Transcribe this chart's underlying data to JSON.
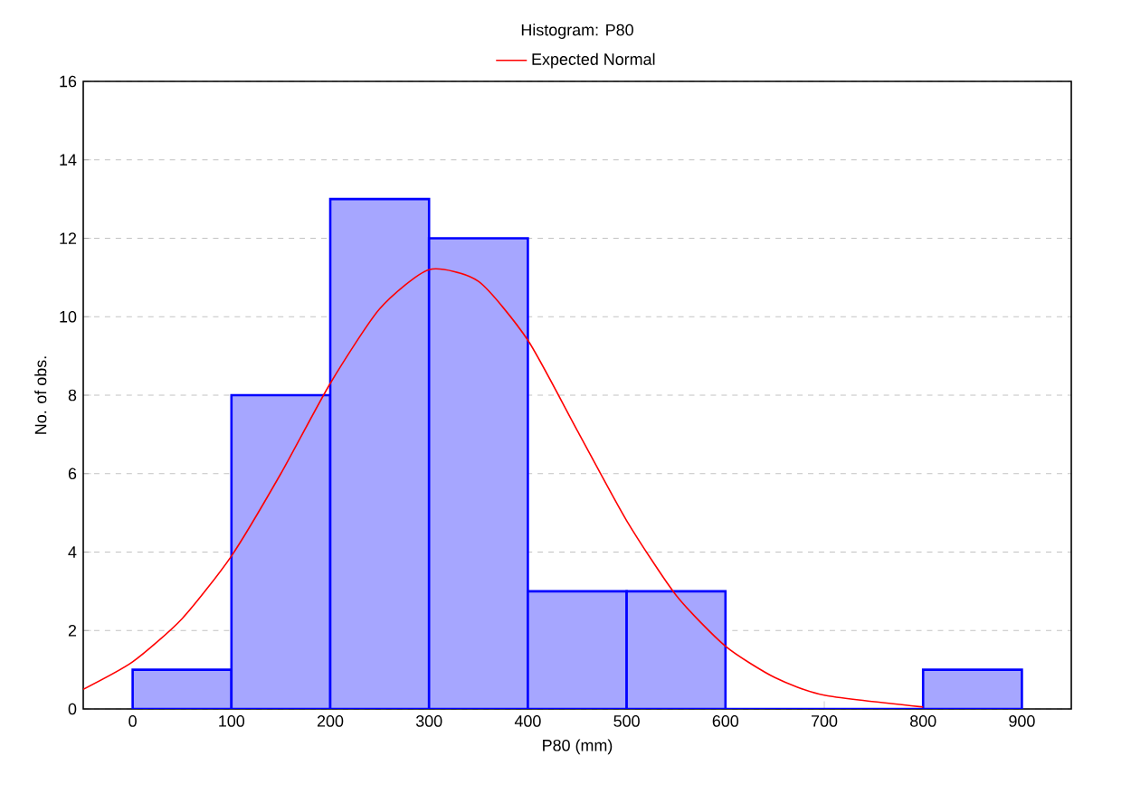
{
  "chart_data": {
    "type": "histogram",
    "title": "Histogram: P80",
    "xlabel": "P80 (mm)",
    "ylabel": "No. of obs.",
    "bins": [
      0,
      100,
      200,
      300,
      400,
      500,
      600,
      700,
      800,
      900
    ],
    "values": [
      1,
      8,
      13,
      12,
      3,
      3,
      0,
      0,
      1
    ],
    "color": "#0000ff",
    "series": [
      {
        "name": "Expected Normal",
        "type": "line",
        "color": "#ff0000",
        "x": [
          -50,
          0,
          50,
          100,
          150,
          200,
          250,
          300,
          350,
          400,
          450,
          500,
          550,
          600,
          650,
          700,
          800
        ],
        "values": [
          0.5,
          1.2,
          2.3,
          3.9,
          6.0,
          8.3,
          10.2,
          11.2,
          10.9,
          9.4,
          7.1,
          4.8,
          2.9,
          1.6,
          0.8,
          0.35,
          0.05
        ]
      }
    ],
    "xlim": [
      -50,
      950
    ],
    "ylim": [
      0,
      16
    ],
    "xticks": [
      0,
      100,
      200,
      300,
      400,
      500,
      600,
      700,
      800,
      900
    ],
    "yticks": [
      0,
      2,
      4,
      6,
      8,
      10,
      12,
      14,
      16
    ],
    "grid": "y",
    "legend": "top"
  }
}
